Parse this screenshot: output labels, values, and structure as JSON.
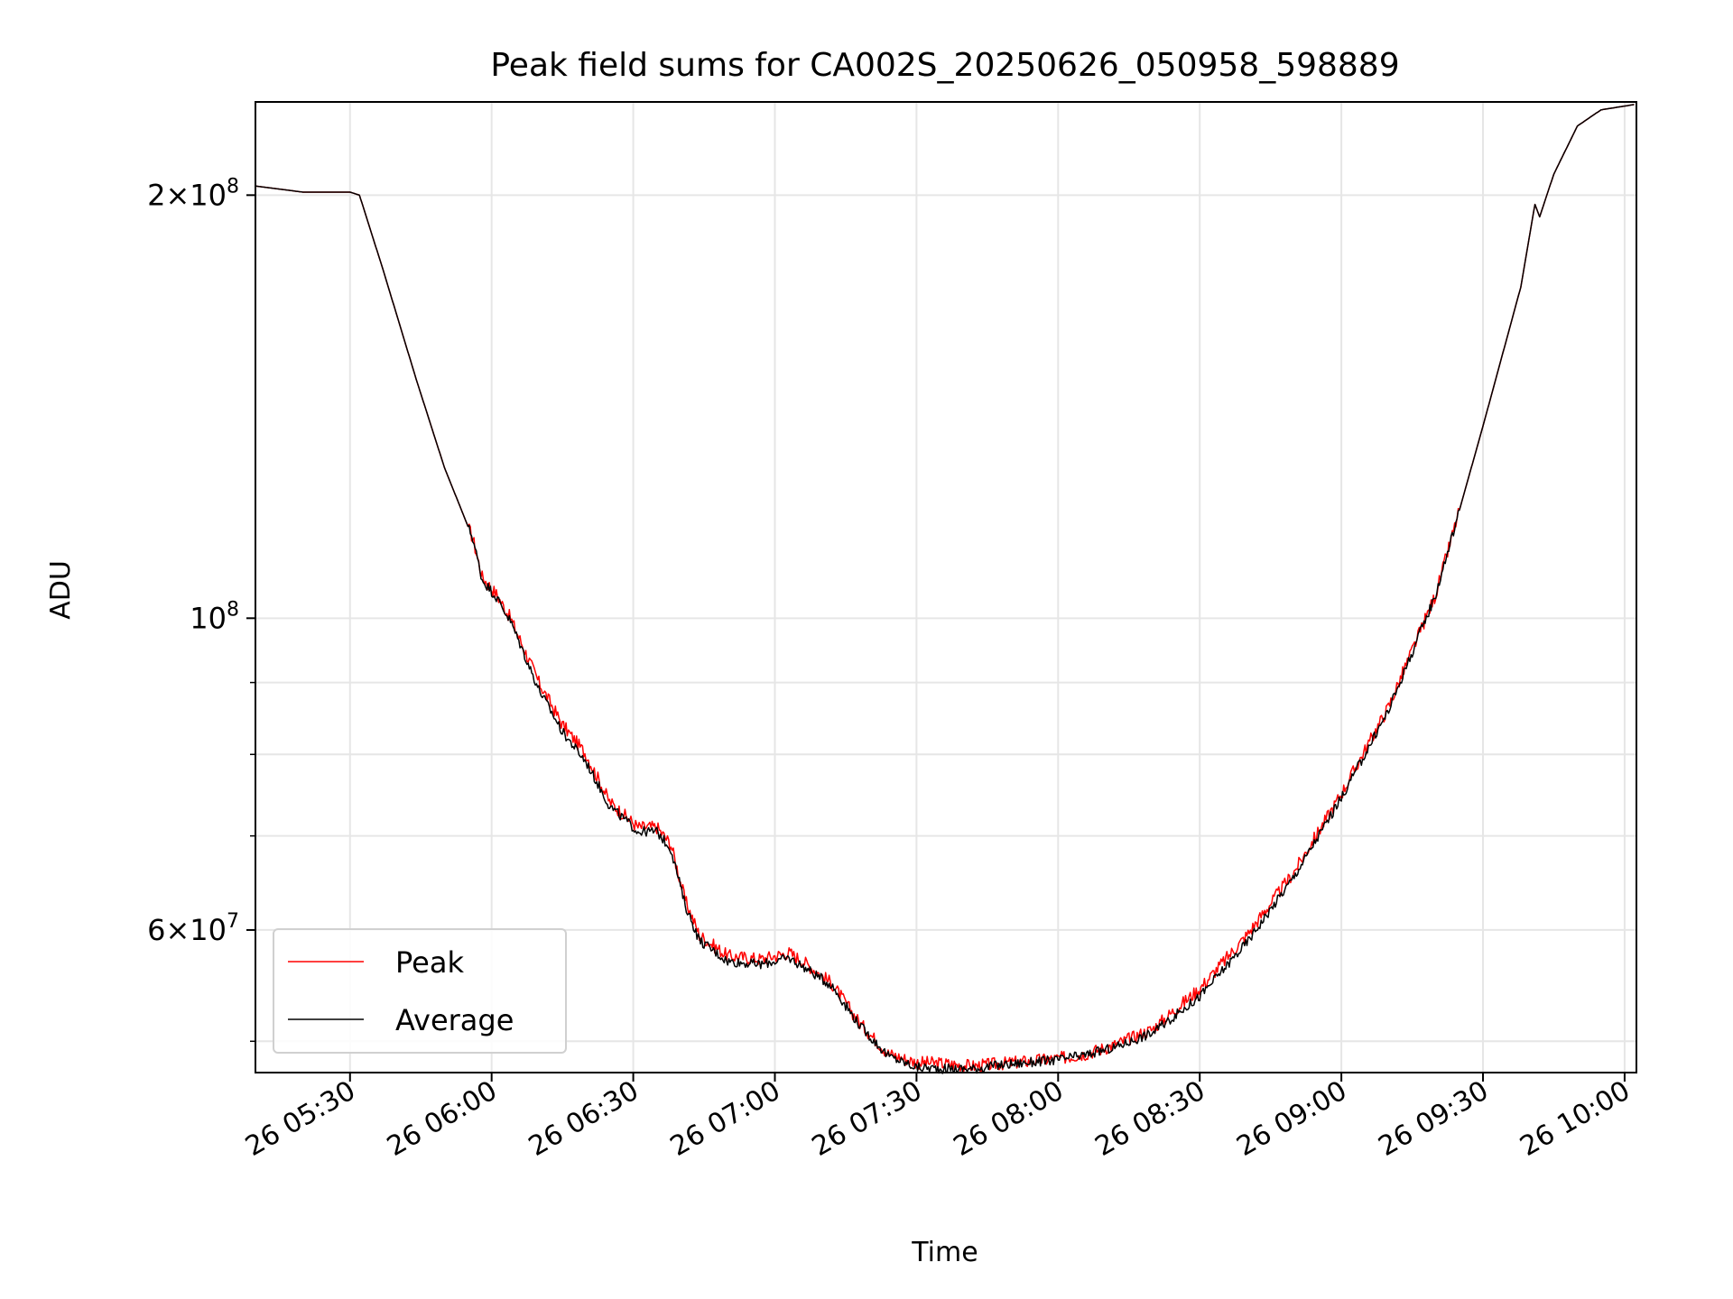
{
  "chart_data": {
    "type": "line",
    "title": "Peak field sums for CA002S_20250626_050958_598889",
    "xlabel": "Time",
    "ylabel": "ADU",
    "y_scale": "log",
    "grid": true,
    "legend_position": "bottom-left",
    "x_unit": "time of day on 26 June 2025 (HH:MM)",
    "xlim": [
      "05:09:58",
      "10:02:30"
    ],
    "ylim": [
      47500000,
      233000000
    ],
    "x_ticks": [
      {
        "value": "05:30",
        "label": "26 05:30"
      },
      {
        "value": "06:00",
        "label": "26 06:00"
      },
      {
        "value": "06:30",
        "label": "26 06:30"
      },
      {
        "value": "07:00",
        "label": "26 07:00"
      },
      {
        "value": "07:30",
        "label": "26 07:30"
      },
      {
        "value": "08:00",
        "label": "26 08:00"
      },
      {
        "value": "08:30",
        "label": "26 08:30"
      },
      {
        "value": "09:00",
        "label": "26 09:00"
      },
      {
        "value": "09:30",
        "label": "26 09:30"
      },
      {
        "value": "10:00",
        "label": "26 10:00"
      }
    ],
    "y_major_ticks": [
      {
        "value": 200000000,
        "mantissa": "2",
        "exponent": "8"
      },
      {
        "value": 100000000,
        "mantissa": "",
        "exponent": "8"
      },
      {
        "value": 60000000,
        "mantissa": "6",
        "exponent": "7"
      }
    ],
    "y_minor_ticks": [
      50000000,
      70000000,
      80000000,
      90000000
    ],
    "series": [
      {
        "name": "Peak",
        "color": "#ff0000",
        "noise": 0.011,
        "x": [
          "05:10",
          "05:20",
          "05:30",
          "05:32",
          "05:37",
          "05:44",
          "05:50",
          "05:56",
          "05:58",
          "06:01",
          "06:04",
          "06:10",
          "06:15",
          "06:20",
          "06:25",
          "06:31",
          "06:35",
          "06:38",
          "06:41",
          "06:44",
          "06:50",
          "06:57",
          "07:03",
          "07:06",
          "07:12",
          "07:18",
          "07:24",
          "07:30",
          "07:36",
          "07:42",
          "07:48",
          "07:54",
          "08:00",
          "08:06",
          "08:12",
          "08:20",
          "08:30",
          "08:40",
          "08:50",
          "09:00",
          "09:10",
          "09:20",
          "09:30",
          "09:38",
          "09:41",
          "09:42",
          "09:45",
          "09:50",
          "09:55",
          "10:02"
        ],
        "y": [
          203000000,
          201000000,
          201000000,
          200000000,
          177000000,
          148000000,
          128000000,
          114000000,
          107000000,
          104000000,
          100000000,
          90000000,
          84000000,
          80000000,
          74000000,
          71000000,
          71000000,
          69000000,
          63000000,
          59500000,
          57500000,
          57200000,
          57800000,
          57000000,
          55000000,
          51500000,
          49000000,
          48300000,
          48200000,
          48000000,
          48200000,
          48400000,
          48600000,
          49000000,
          49700000,
          51000000,
          54500000,
          59500000,
          66000000,
          75000000,
          86500000,
          104000000,
          137000000,
          172000000,
          197000000,
          193000000,
          207000000,
          224000000,
          230000000,
          232000000
        ]
      },
      {
        "name": "Average",
        "color": "#000000",
        "noise": 0.008,
        "x": [
          "05:10",
          "05:20",
          "05:30",
          "05:32",
          "05:37",
          "05:44",
          "05:50",
          "05:56",
          "05:58",
          "06:01",
          "06:04",
          "06:10",
          "06:15",
          "06:20",
          "06:25",
          "06:31",
          "06:35",
          "06:38",
          "06:41",
          "06:44",
          "06:50",
          "06:57",
          "07:03",
          "07:06",
          "07:12",
          "07:18",
          "07:24",
          "07:30",
          "07:36",
          "07:42",
          "07:48",
          "07:54",
          "08:00",
          "08:06",
          "08:12",
          "08:20",
          "08:30",
          "08:40",
          "08:50",
          "09:00",
          "09:10",
          "09:20",
          "09:30",
          "09:38",
          "09:41",
          "09:42",
          "09:45",
          "09:50",
          "09:55",
          "10:02"
        ],
        "y": [
          203000000,
          201000000,
          201000000,
          200000000,
          177000000,
          148000000,
          128000000,
          114000000,
          106500000,
          103500000,
          99500000,
          89000000,
          83000000,
          79000000,
          73500000,
          70500000,
          70500000,
          68500000,
          62500000,
          59000000,
          57000000,
          56700000,
          57300000,
          56500000,
          54800000,
          51300000,
          48800000,
          47900000,
          47800000,
          47800000,
          48100000,
          48300000,
          48500000,
          48900000,
          49500000,
          50700000,
          53800000,
          58800000,
          65500000,
          74500000,
          86000000,
          104000000,
          137000000,
          172000000,
          197000000,
          193000000,
          207000000,
          224000000,
          230000000,
          232000000
        ]
      }
    ]
  }
}
